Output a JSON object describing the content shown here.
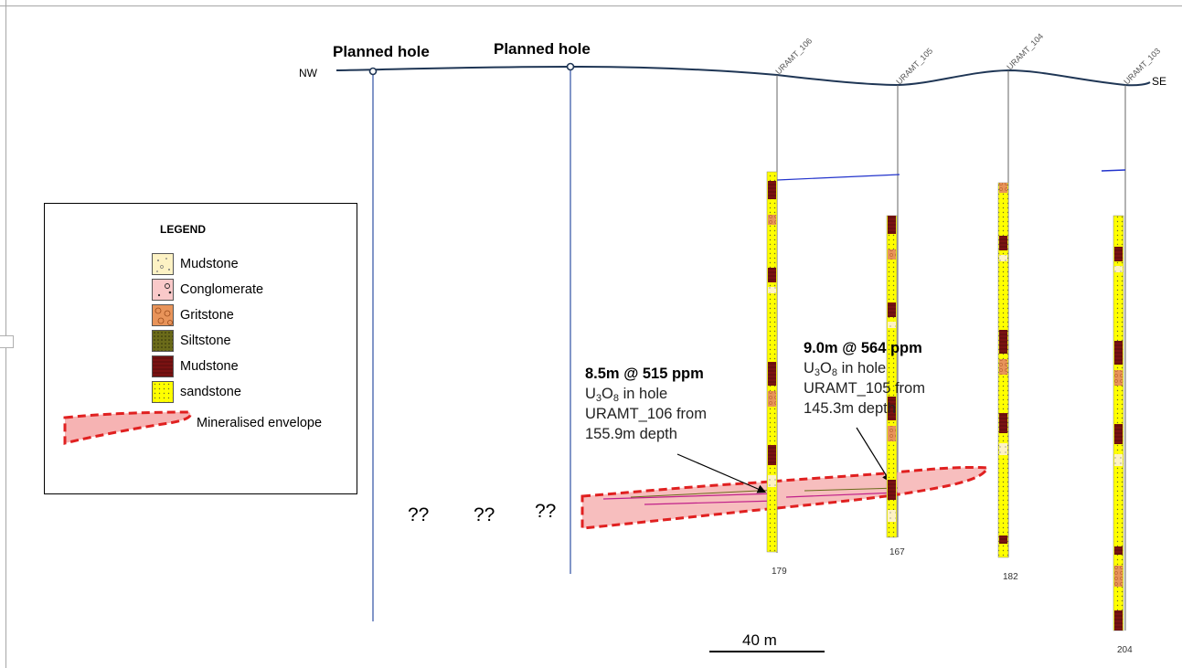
{
  "section": {
    "planned_hole_labels": [
      "Planned hole",
      "Planned hole"
    ],
    "direction_labels": {
      "left": "NW",
      "right": "SE"
    },
    "unknown_marks": [
      "??",
      "??",
      "??"
    ],
    "scale_bar_label": "40 m"
  },
  "drill_holes": [
    {
      "name": "URAMT_106",
      "end_depth": "179"
    },
    {
      "name": "URAMT_105",
      "end_depth": "167"
    },
    {
      "name": "URAMT_104",
      "end_depth": "182"
    },
    {
      "name": "URAMT_103",
      "end_depth": "204"
    }
  ],
  "annotations": [
    {
      "headline": "8.5m @ 515 ppm",
      "compound": "U",
      "sub1": "3",
      "o": "O",
      "sub2": "8",
      "rest": " in hole",
      "line3": "URAMT_106 from",
      "line4": "155.9m depth"
    },
    {
      "headline": "9.0m @ 564 ppm",
      "compound": "U",
      "sub1": "3",
      "o": "O",
      "sub2": "8",
      "rest": " in hole",
      "line3": "URAMT_105 from",
      "line4": "145.3m depth"
    }
  ],
  "legend": {
    "title": "LEGEND",
    "items": [
      {
        "label": "Mudstone",
        "color": "#fdf2c4",
        "pattern": "mudstone-dots"
      },
      {
        "label": "Conglomerate",
        "color": "#f9c9c9",
        "pattern": "conglomerate-circles"
      },
      {
        "label": "Gritstone",
        "color": "#e8945a",
        "pattern": "gritstone-rings"
      },
      {
        "label": "Siltstone",
        "color": "#6b6b1a",
        "pattern": "siltstone-dots"
      },
      {
        "label": "Mudstone",
        "color": "#7a1212",
        "pattern": "mudstone-lines"
      },
      {
        "label": "sandstone",
        "color": "#ffff00",
        "pattern": "sandstone-dots"
      }
    ],
    "envelope_label": "Mineralised envelope"
  },
  "colors": {
    "topography": "#1f3655",
    "planned_hole_line": "#2e4fa3",
    "envelope_fill": "#f6b3b3",
    "envelope_outline": "#e02020",
    "sandstone": "#ffff00",
    "mudstone": "#7a1212",
    "gritstone": "#e8945a"
  }
}
